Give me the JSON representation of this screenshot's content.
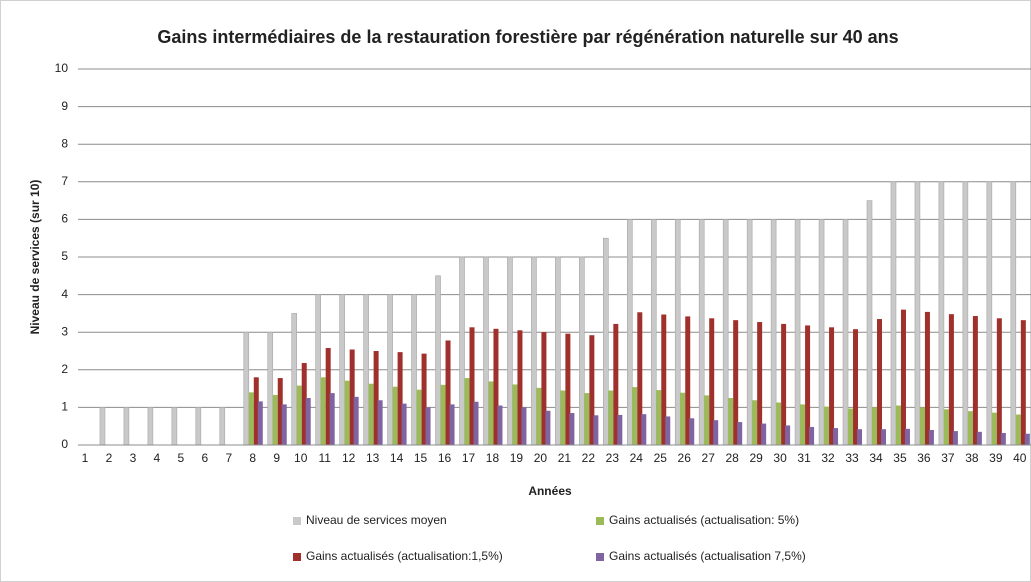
{
  "chart_data": {
    "type": "bar",
    "title": "Gains intermédiaires de la restauration forestière par régénération naturelle sur 40 ans",
    "xlabel": "Années",
    "ylabel": "Niveau de services (sur 10)",
    "categories": [
      "1",
      "2",
      "3",
      "4",
      "5",
      "6",
      "7",
      "8",
      "9",
      "10",
      "11",
      "12",
      "13",
      "14",
      "15",
      "16",
      "17",
      "18",
      "19",
      "20",
      "21",
      "22",
      "23",
      "24",
      "25",
      "26",
      "27",
      "28",
      "29",
      "30",
      "31",
      "32",
      "33",
      "34",
      "35",
      "36",
      "37",
      "38",
      "39",
      "40"
    ],
    "series": [
      {
        "name": "Niveau de services moyen",
        "color": "#c9c9c9",
        "values": [
          0,
          1,
          1,
          1,
          1,
          1,
          1,
          3,
          3,
          3.5,
          4,
          4,
          4,
          4,
          4,
          4.5,
          5,
          5,
          5,
          5,
          5,
          5,
          5.5,
          6,
          6,
          6,
          6,
          6,
          6,
          6,
          6,
          6,
          6,
          6.5,
          7,
          7,
          7,
          7,
          7,
          7
        ]
      },
      {
        "name": "Gains actualisés (actualisation: 5%)",
        "color": "#9bbb59",
        "values": [
          0,
          0,
          0,
          0,
          0,
          0,
          0,
          1.4,
          1.33,
          1.58,
          1.8,
          1.71,
          1.63,
          1.55,
          1.47,
          1.6,
          1.78,
          1.69,
          1.61,
          1.52,
          1.45,
          1.38,
          1.45,
          1.54,
          1.46,
          1.39,
          1.32,
          1.25,
          1.19,
          1.13,
          1.08,
          1.02,
          0.97,
          1.0,
          1.05,
          1.0,
          0.95,
          0.9,
          0.86,
          0.81
        ]
      },
      {
        "name": "Gains actualisés (actualisation:1,5%)",
        "color": "#a0302c",
        "values": [
          0,
          0,
          0,
          0,
          0,
          0,
          0,
          1.8,
          1.78,
          2.18,
          2.58,
          2.54,
          2.5,
          2.47,
          2.43,
          2.78,
          3.13,
          3.09,
          3.05,
          3.0,
          2.96,
          2.92,
          3.22,
          3.53,
          3.47,
          3.42,
          3.37,
          3.32,
          3.27,
          3.22,
          3.18,
          3.13,
          3.08,
          3.35,
          3.6,
          3.54,
          3.48,
          3.43,
          3.37,
          3.32
        ]
      },
      {
        "name": "Gains actualisés (actualisation 7,5%)",
        "color": "#8064a2",
        "values": [
          0,
          0,
          0,
          0,
          0,
          0,
          0,
          1.16,
          1.08,
          1.25,
          1.38,
          1.28,
          1.19,
          1.1,
          1.0,
          1.08,
          1.15,
          1.05,
          1.0,
          0.91,
          0.85,
          0.79,
          0.8,
          0.82,
          0.76,
          0.71,
          0.66,
          0.61,
          0.57,
          0.52,
          0.48,
          0.45,
          0.42,
          0.42,
          0.43,
          0.4,
          0.37,
          0.35,
          0.32,
          0.3
        ]
      }
    ],
    "ylim": [
      0,
      10
    ],
    "yticks": [
      0,
      1,
      2,
      3,
      4,
      5,
      6,
      7,
      8,
      9,
      10
    ],
    "grid": true,
    "legend": "bottom"
  }
}
